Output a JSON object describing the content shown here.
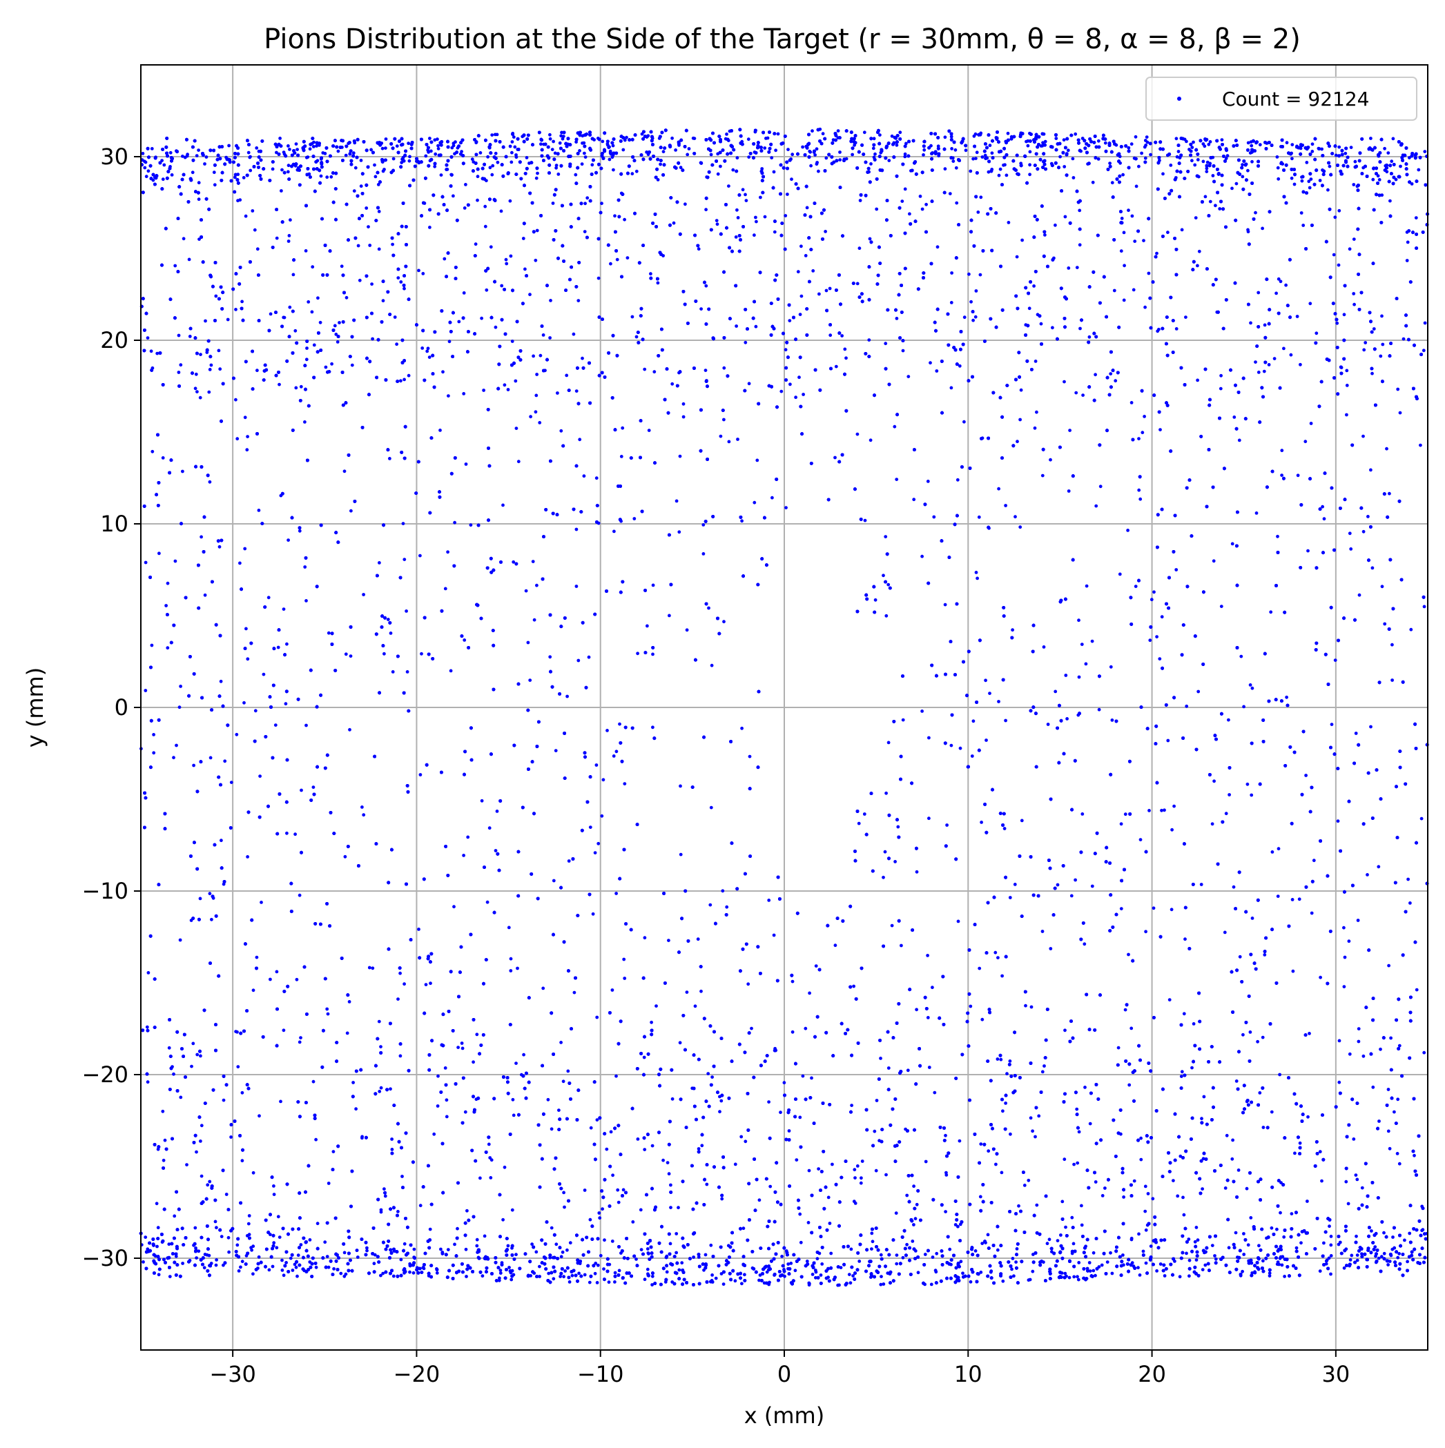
{
  "chart_data": {
    "type": "scatter",
    "title": "Pions Distribution at the Side of the Target (r = 30mm, θ = 8, α = 8, β = 2)",
    "xlabel": "x (mm)",
    "ylabel": "y (mm)",
    "xlim": [
      -35,
      35
    ],
    "ylim": [
      -35,
      35
    ],
    "xticks": [
      -30,
      -20,
      -10,
      0,
      10,
      20,
      30
    ],
    "yticks": [
      -30,
      -20,
      -10,
      0,
      10,
      20,
      30
    ],
    "xtick_labels": [
      "−30",
      "−20",
      "−10",
      "0",
      "10",
      "20",
      "30"
    ],
    "ytick_labels": [
      "−30",
      "−20",
      "−10",
      "0",
      "10",
      "20",
      "30"
    ],
    "grid": true,
    "legend_position": "top-right",
    "series": [
      {
        "name": "Count = 92124",
        "color": "#0000ff",
        "marker": "dot",
        "count": 92124,
        "distribution": {
          "x_range": [
            -35,
            35
          ],
          "y_range": [
            -31.5,
            31.5
          ],
          "dense_band_top_y": [
            29,
            31.5
          ],
          "dense_band_bottom_y": [
            -31.5,
            -29
          ],
          "central_void": {
            "x_center": 1.5,
            "y_range": [
              -13,
              13
            ],
            "half_width_at_y0": 2.8
          }
        }
      }
    ]
  }
}
